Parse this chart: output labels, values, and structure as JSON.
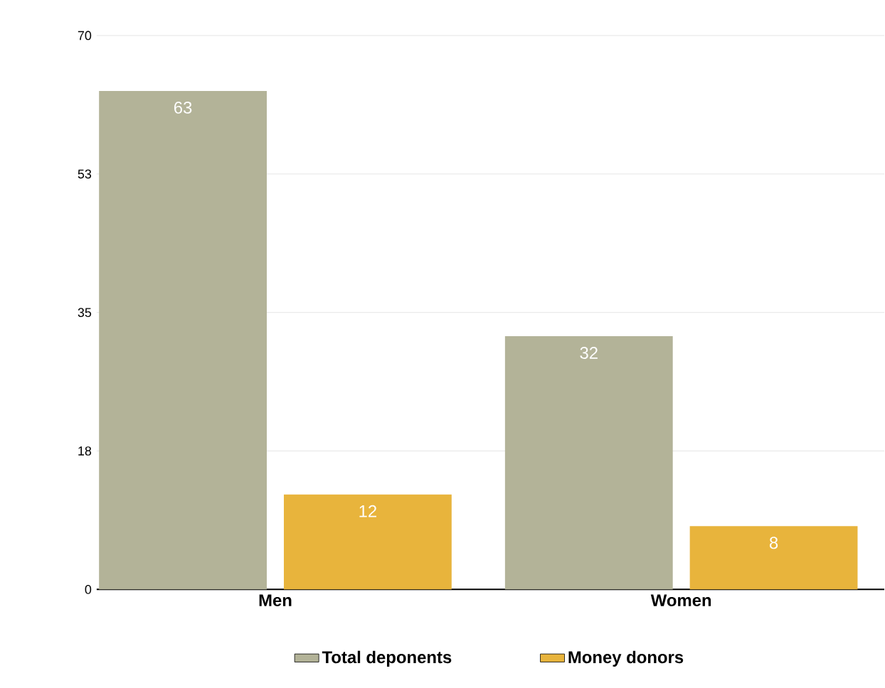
{
  "chart_data": {
    "type": "bar",
    "categories": [
      "Men",
      "Women"
    ],
    "series": [
      {
        "name": "Total deponents",
        "color": "#b3b398",
        "values": [
          63,
          32
        ]
      },
      {
        "name": "Money donors",
        "color": "#e8b43c",
        "values": [
          12,
          8
        ]
      }
    ],
    "ylim": [
      0,
      70
    ],
    "yticks": [
      0,
      {
        "value": 17.5,
        "label": "18"
      },
      35,
      {
        "value": 52.5,
        "label": "53"
      },
      70
    ],
    "grid": "y",
    "legend": "bottom",
    "data_labels": true
  }
}
